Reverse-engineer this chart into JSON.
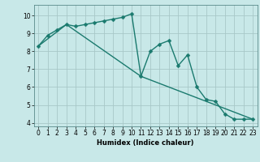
{
  "line1_x": [
    0,
    1,
    2,
    3,
    4,
    5,
    6,
    7,
    8,
    9,
    10,
    11,
    12,
    13,
    14,
    15,
    16,
    17,
    18,
    19,
    20,
    21,
    22,
    23
  ],
  "line1_y": [
    8.3,
    8.9,
    9.2,
    9.5,
    9.4,
    9.5,
    9.6,
    9.7,
    9.8,
    9.9,
    10.1,
    6.6,
    8.0,
    8.4,
    8.6,
    7.2,
    7.8,
    6.0,
    5.3,
    5.2,
    4.5,
    4.2,
    4.2,
    4.2
  ],
  "line2_x": [
    0,
    3,
    11,
    23
  ],
  "line2_y": [
    8.3,
    9.5,
    6.6,
    4.2
  ],
  "color": "#1a7a6e",
  "bg_color": "#c8e8e8",
  "grid_color": "#a8c8c8",
  "xlabel": "Humidex (Indice chaleur)",
  "ylim": [
    3.8,
    10.6
  ],
  "xlim": [
    -0.5,
    23.5
  ],
  "yticks": [
    4,
    5,
    6,
    7,
    8,
    9,
    10
  ],
  "xticks": [
    0,
    1,
    2,
    3,
    4,
    5,
    6,
    7,
    8,
    9,
    10,
    11,
    12,
    13,
    14,
    15,
    16,
    17,
    18,
    19,
    20,
    21,
    22,
    23
  ],
  "marker_size": 2.5,
  "line_width": 1.0,
  "tick_fontsize": 5.5,
  "xlabel_fontsize": 6.0
}
